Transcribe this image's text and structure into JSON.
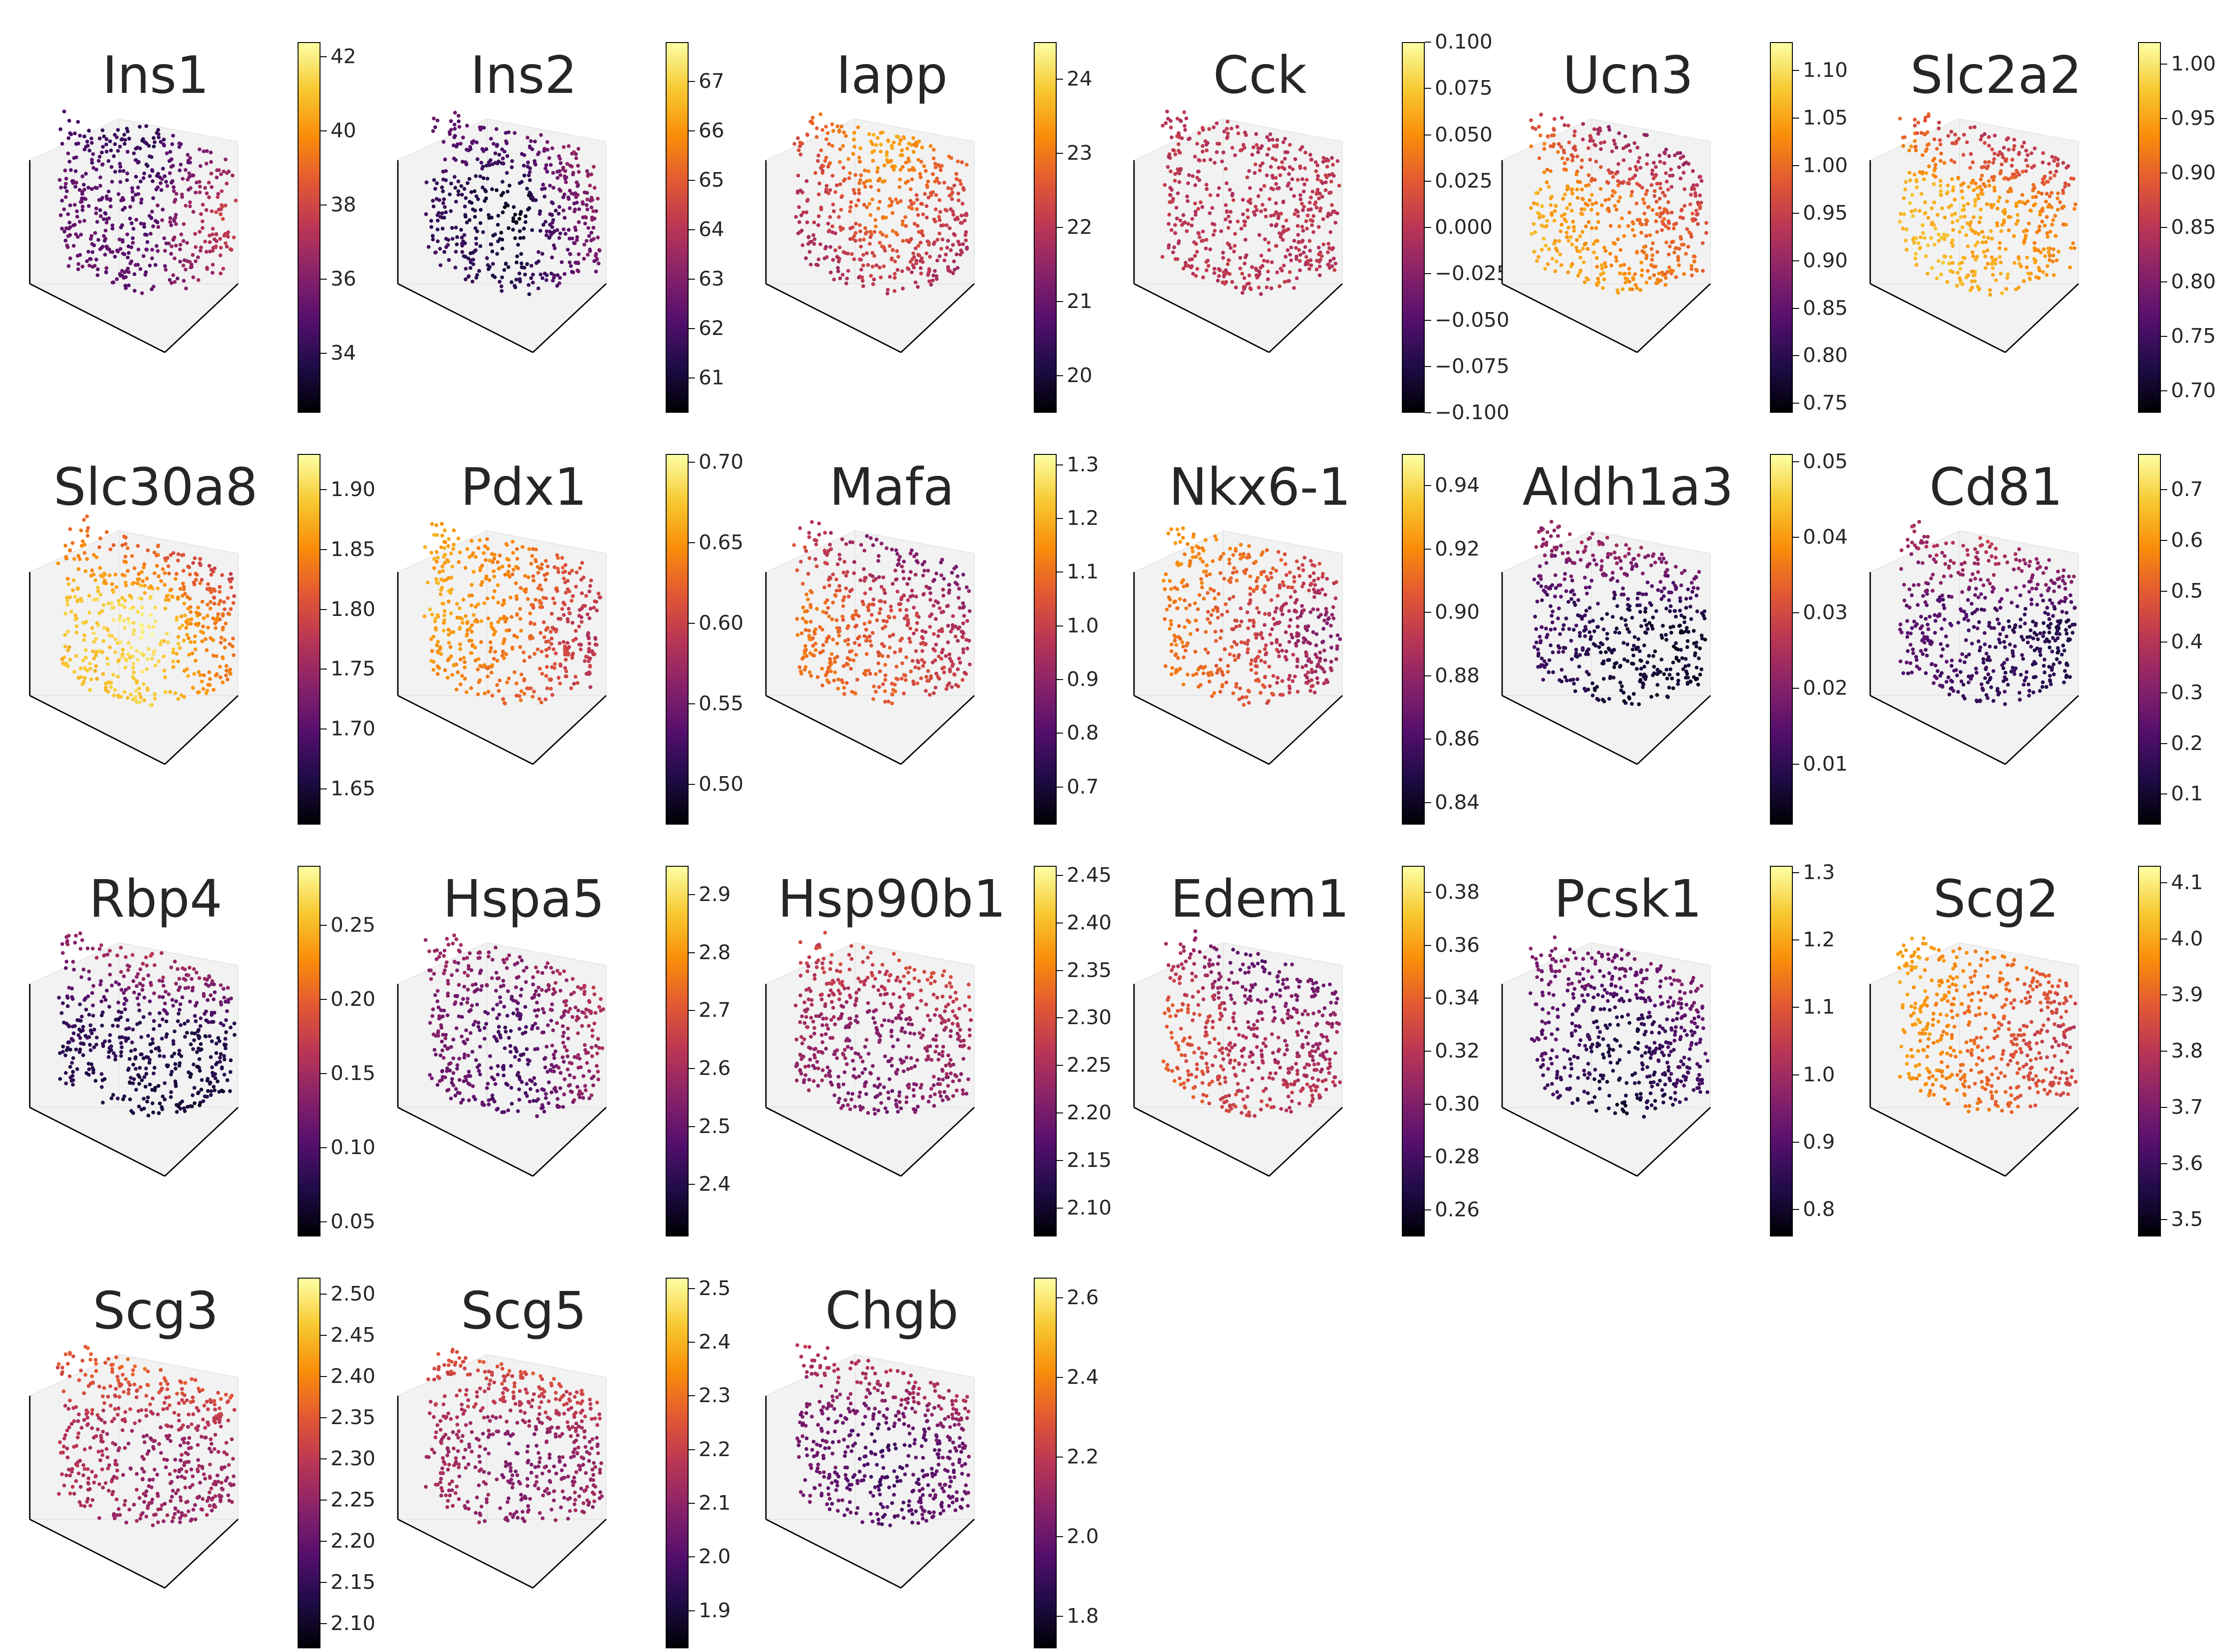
{
  "colormap": "inferno",
  "colors": {
    "stops": [
      "#000004",
      "#1f0c48",
      "#550f6d",
      "#88226a",
      "#ba3655",
      "#e35933",
      "#f98e09",
      "#f8c932",
      "#fcffa4"
    ],
    "pane": "#f2f2f2",
    "edge": "#000000",
    "text": "#262626"
  },
  "chart_data": [
    {
      "type": "scatter",
      "title": "Ins1",
      "colorbar": {
        "ticks": [
          "34",
          "36",
          "38",
          "40",
          "42"
        ],
        "range": [
          32.4,
          42.4
        ]
      },
      "gradient": {
        "left": 0.35,
        "top": 0.05,
        "right": 0.92,
        "center": 0.25,
        "bottom": 0.3
      }
    },
    {
      "type": "scatter",
      "title": "Ins2",
      "colorbar": {
        "ticks": [
          "61",
          "62",
          "63",
          "64",
          "65",
          "66",
          "67"
        ],
        "range": [
          60.3,
          67.8
        ]
      },
      "gradient": {
        "left": 0.35,
        "top": 0.55,
        "right": 0.75,
        "center": 0.05,
        "bottom": 0.25
      }
    },
    {
      "type": "scatter",
      "title": "Iapp",
      "colorbar": {
        "ticks": [
          "20",
          "21",
          "22",
          "23",
          "24"
        ],
        "range": [
          19.5,
          24.5
        ]
      },
      "gradient": {
        "left": 0.25,
        "top": 0.95,
        "right": 0.3,
        "center": 0.7,
        "bottom": 0.25
      }
    },
    {
      "type": "scatter",
      "title": "Cck",
      "colorbar": {
        "ticks": [
          "0.100",
          "0.075",
          "0.050",
          "0.025",
          "0.000",
          "−0.025",
          "−0.050",
          "−0.075",
          "−0.100"
        ],
        "range": [
          -0.1,
          0.1
        ]
      },
      "gradient": {
        "left": 0.5,
        "top": 0.5,
        "right": 0.5,
        "center": 0.5,
        "bottom": 0.5
      }
    },
    {
      "type": "scatter",
      "title": "Ucn3",
      "colorbar": {
        "ticks": [
          "1.10",
          "1.05",
          "1.00",
          "0.95",
          "0.90",
          "0.85",
          "0.80",
          "0.75"
        ],
        "range": [
          0.74,
          1.13
        ]
      },
      "gradient": {
        "left": 0.95,
        "top": 0.05,
        "right": 0.45,
        "center": 0.7,
        "bottom": 0.85
      }
    },
    {
      "type": "scatter",
      "title": "Slc2a2",
      "colorbar": {
        "ticks": [
          "1.00",
          "0.95",
          "0.90",
          "0.85",
          "0.80",
          "0.75",
          "0.70"
        ],
        "range": [
          0.68,
          1.02
        ]
      },
      "gradient": {
        "left": 0.9,
        "top": 0.1,
        "right": 0.6,
        "center": 0.8,
        "bottom": 0.85
      }
    },
    {
      "type": "scatter",
      "title": "Slc30a8",
      "colorbar": {
        "ticks": [
          "1.90",
          "1.85",
          "1.80",
          "1.75",
          "1.70",
          "1.65"
        ],
        "range": [
          1.62,
          1.93
        ]
      },
      "gradient": {
        "left": 0.75,
        "top": 0.25,
        "right": 0.35,
        "center": 0.95,
        "bottom": 0.8
      }
    },
    {
      "type": "scatter",
      "title": "Pdx1",
      "colorbar": {
        "ticks": [
          "0.70",
          "0.65",
          "0.60",
          "0.55",
          "0.50"
        ],
        "range": [
          0.475,
          0.705
        ]
      },
      "gradient": {
        "left": 0.95,
        "top": 0.75,
        "right": 0.2,
        "center": 0.7,
        "bottom": 0.6
      }
    },
    {
      "type": "scatter",
      "title": "Mafa",
      "colorbar": {
        "ticks": [
          "1.3",
          "1.2",
          "1.1",
          "1.0",
          "0.9",
          "0.8",
          "0.7"
        ],
        "range": [
          0.63,
          1.32
        ]
      },
      "gradient": {
        "left": 0.8,
        "top": 0.05,
        "right": 0.3,
        "center": 0.6,
        "bottom": 0.7
      }
    },
    {
      "type": "scatter",
      "title": "Nkx6-1",
      "colorbar": {
        "ticks": [
          "0.94",
          "0.92",
          "0.90",
          "0.88",
          "0.86",
          "0.84"
        ],
        "range": [
          0.833,
          0.95
        ]
      },
      "gradient": {
        "left": 0.9,
        "top": 0.9,
        "right": 0.1,
        "center": 0.55,
        "bottom": 0.7
      }
    },
    {
      "type": "scatter",
      "title": "Aldh1a3",
      "colorbar": {
        "ticks": [
          "0.05",
          "0.04",
          "0.03",
          "0.02",
          "0.01"
        ],
        "range": [
          0.002,
          0.051
        ]
      },
      "gradient": {
        "left": 0.4,
        "top": 0.85,
        "right": 0.05,
        "center": 0.1,
        "bottom": 0.05
      }
    },
    {
      "type": "scatter",
      "title": "Cd81",
      "colorbar": {
        "ticks": [
          "0.7",
          "0.6",
          "0.5",
          "0.4",
          "0.3",
          "0.2",
          "0.1"
        ],
        "range": [
          0.04,
          0.77
        ]
      },
      "gradient": {
        "left": 0.4,
        "top": 0.9,
        "right": 0.05,
        "center": 0.2,
        "bottom": 0.15
      }
    },
    {
      "type": "scatter",
      "title": "Rbp4",
      "colorbar": {
        "ticks": [
          "0.25",
          "0.20",
          "0.15",
          "0.10",
          "0.05"
        ],
        "range": [
          0.04,
          0.29
        ]
      },
      "gradient": {
        "left": 0.2,
        "top": 0.9,
        "right": 0.1,
        "center": 0.15,
        "bottom": 0.05
      }
    },
    {
      "type": "scatter",
      "title": "Hspa5",
      "colorbar": {
        "ticks": [
          "2.9",
          "2.8",
          "2.7",
          "2.6",
          "2.5",
          "2.4"
        ],
        "range": [
          2.31,
          2.95
        ]
      },
      "gradient": {
        "left": 0.55,
        "top": 0.6,
        "right": 0.75,
        "center": 0.2,
        "bottom": 0.25
      }
    },
    {
      "type": "scatter",
      "title": "Hsp90b1",
      "colorbar": {
        "ticks": [
          "2.45",
          "2.40",
          "2.35",
          "2.30",
          "2.25",
          "2.20",
          "2.15",
          "2.10"
        ],
        "range": [
          2.07,
          2.46
        ]
      },
      "gradient": {
        "left": 0.55,
        "top": 0.85,
        "right": 0.55,
        "center": 0.35,
        "bottom": 0.3
      }
    },
    {
      "type": "scatter",
      "title": "Edem1",
      "colorbar": {
        "ticks": [
          "0.38",
          "0.36",
          "0.34",
          "0.32",
          "0.30",
          "0.28",
          "0.26"
        ],
        "range": [
          0.25,
          0.39
        ]
      },
      "gradient": {
        "left": 0.85,
        "top": 0.05,
        "right": 0.4,
        "center": 0.45,
        "bottom": 0.65
      }
    },
    {
      "type": "scatter",
      "title": "Pcsk1",
      "colorbar": {
        "ticks": [
          "1.3",
          "1.2",
          "1.1",
          "1.0",
          "0.9",
          "0.8"
        ],
        "range": [
          0.76,
          1.31
        ]
      },
      "gradient": {
        "left": 0.5,
        "top": 0.6,
        "right": 0.45,
        "center": 0.1,
        "bottom": 0.05
      }
    },
    {
      "type": "scatter",
      "title": "Scg2",
      "colorbar": {
        "ticks": [
          "4.1",
          "4.0",
          "3.9",
          "3.8",
          "3.7",
          "3.6",
          "3.5"
        ],
        "range": [
          3.47,
          4.13
        ]
      },
      "gradient": {
        "left": 0.95,
        "top": 0.8,
        "right": 0.35,
        "center": 0.65,
        "bottom": 0.7
      }
    },
    {
      "type": "scatter",
      "title": "Scg3",
      "colorbar": {
        "ticks": [
          "2.50",
          "2.45",
          "2.40",
          "2.35",
          "2.30",
          "2.25",
          "2.20",
          "2.15",
          "2.10"
        ],
        "range": [
          2.07,
          2.52
        ]
      },
      "gradient": {
        "left": 0.6,
        "top": 0.95,
        "right": 0.45,
        "center": 0.4,
        "bottom": 0.45
      }
    },
    {
      "type": "scatter",
      "title": "Scg5",
      "colorbar": {
        "ticks": [
          "2.5",
          "2.4",
          "2.3",
          "2.2",
          "2.1",
          "2.0",
          "1.9"
        ],
        "range": [
          1.83,
          2.52
        ]
      },
      "gradient": {
        "left": 0.6,
        "top": 0.9,
        "right": 0.5,
        "center": 0.35,
        "bottom": 0.4
      }
    },
    {
      "type": "scatter",
      "title": "Chgb",
      "colorbar": {
        "ticks": [
          "2.6",
          "2.4",
          "2.2",
          "2.0",
          "1.8"
        ],
        "range": [
          1.72,
          2.65
        ]
      },
      "gradient": {
        "left": 0.5,
        "top": 0.85,
        "right": 0.45,
        "center": 0.2,
        "bottom": 0.3
      }
    }
  ]
}
